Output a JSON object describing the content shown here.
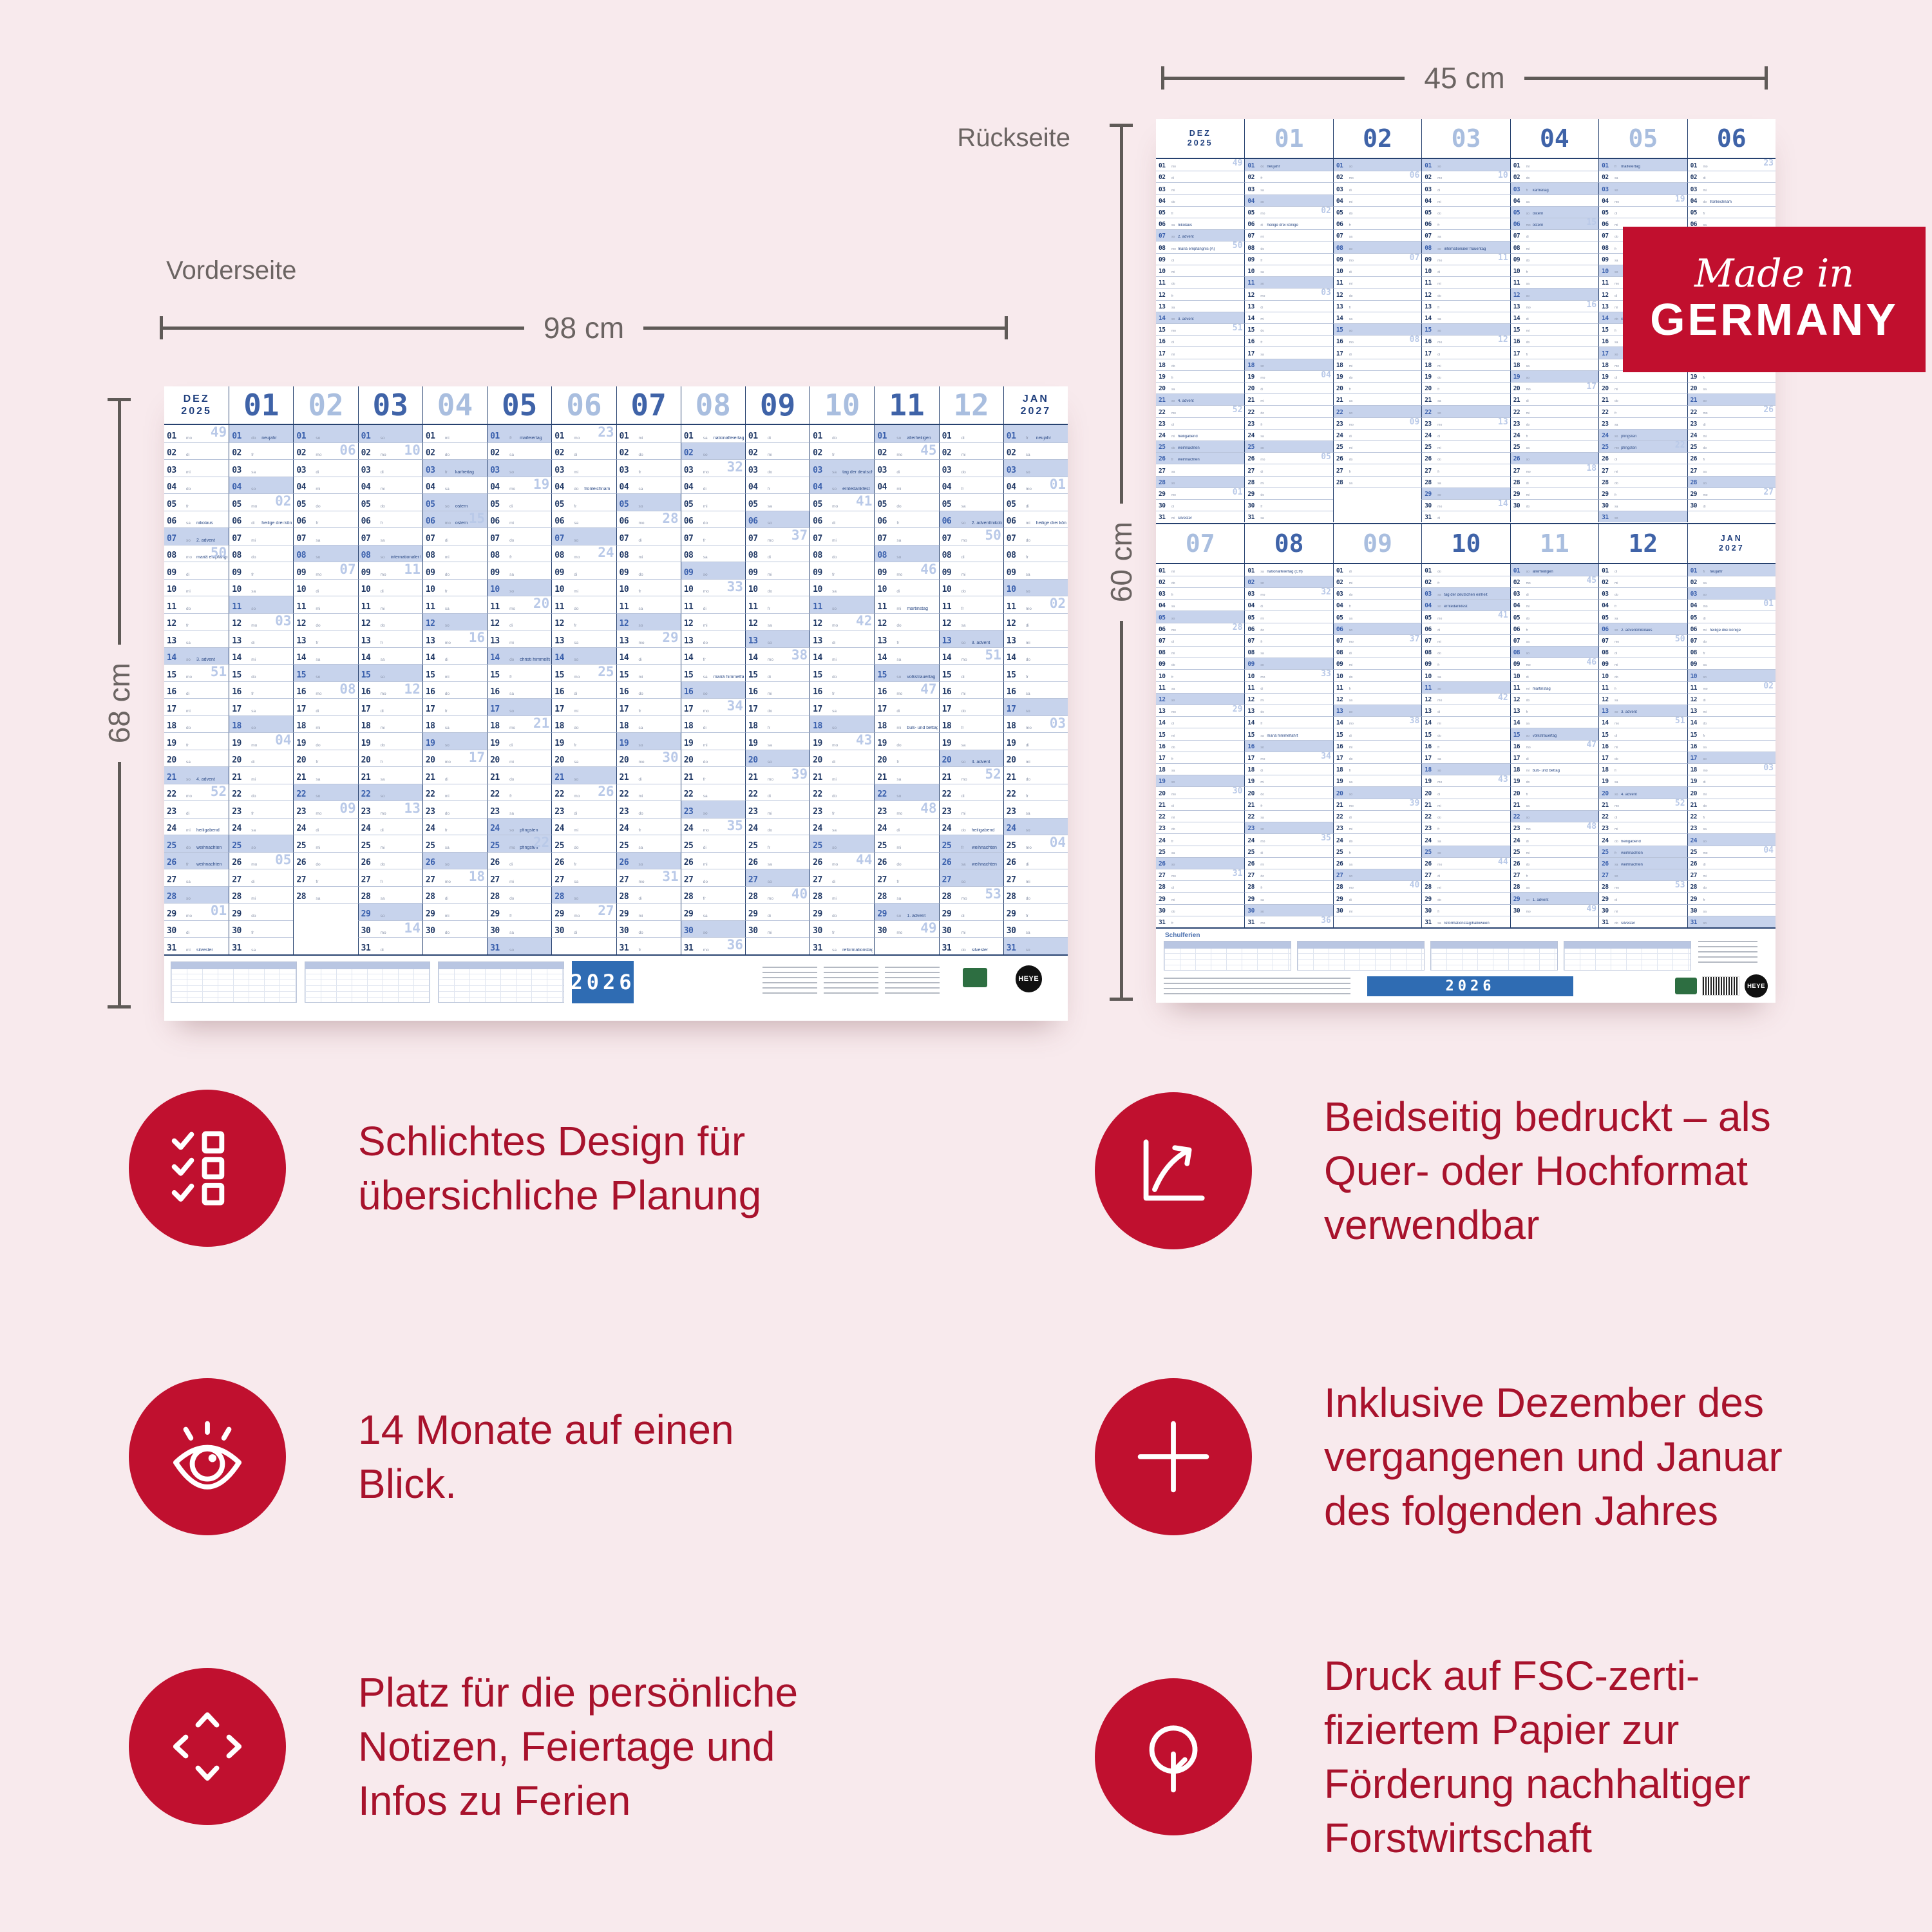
{
  "annotations": {
    "front_label": "Vorderseite",
    "back_label": "Rückseite",
    "front_width": "98 cm",
    "front_height": "68 cm",
    "back_width": "45 cm",
    "back_height": "60 cm"
  },
  "badge": {
    "line1": "Made in",
    "line2": "GERMANY",
    "bg": "#c10f2e"
  },
  "colors": {
    "background": "#f8eaed",
    "accent_red": "#c0102f",
    "text_red": "#a8122c",
    "calendar_navy": "#26416f",
    "calendar_light_blue": "#c7d3ec",
    "footer_blue": "#2f6cb3"
  },
  "features": [
    {
      "icon": "checklist-icon",
      "lines": [
        "Schlichtes Design für",
        "übersichliche Planung"
      ]
    },
    {
      "icon": "growth-arrow-icon",
      "lines": [
        "Beidseitig bedruckt – als",
        "Quer- oder Hochformat",
        "verwendbar"
      ]
    },
    {
      "icon": "eye-icon",
      "lines": [
        "14 Monate auf einen",
        "Blick."
      ]
    },
    {
      "icon": "plus-icon",
      "lines": [
        "Inklusive Dezember des",
        "vergangenen und Januar",
        "des folgenden Jahres"
      ]
    },
    {
      "icon": "expand-arrows-icon",
      "lines": [
        "Platz für die persönliche",
        "Notizen, Feiertage und",
        "Infos zu Ferien"
      ]
    },
    {
      "icon": "tree-icon",
      "lines": [
        "Druck auf FSC-zerti-",
        "fiziertem Papier zur",
        "Förderung nachhaltiger",
        "Forstwirtschaft"
      ]
    }
  ],
  "calendar": {
    "year_label": "2026",
    "brand": "HEYE",
    "schulferien_label": "Schulferien",
    "weekdays": [
      "mo",
      "di",
      "mi",
      "do",
      "fr",
      "sa",
      "so"
    ],
    "months": [
      {
        "label": "DEZ",
        "sub": "2025",
        "year": 2025,
        "month": 12
      },
      {
        "label": "01",
        "year": 2026,
        "month": 1
      },
      {
        "label": "02",
        "year": 2026,
        "month": 2
      },
      {
        "label": "03",
        "year": 2026,
        "month": 3
      },
      {
        "label": "04",
        "year": 2026,
        "month": 4
      },
      {
        "label": "05",
        "year": 2026,
        "month": 5
      },
      {
        "label": "06",
        "year": 2026,
        "month": 6
      },
      {
        "label": "07",
        "year": 2026,
        "month": 7
      },
      {
        "label": "08",
        "year": 2026,
        "month": 8
      },
      {
        "label": "09",
        "year": 2026,
        "month": 9
      },
      {
        "label": "10",
        "year": 2026,
        "month": 10
      },
      {
        "label": "11",
        "year": 2026,
        "month": 11
      },
      {
        "label": "12",
        "year": 2026,
        "month": 12
      },
      {
        "label": "JAN",
        "sub": "2027",
        "year": 2027,
        "month": 1
      }
    ],
    "holidays": {
      "2025-12-06": "nikolaus",
      "2025-12-07": "2. advent",
      "2025-12-08": "mariä empfängnis (A)",
      "2025-12-14": "3. advent",
      "2025-12-21": "4. advent",
      "2025-12-24": "heiligabend",
      "2025-12-25": "weihnachten",
      "2025-12-26": "weihnachten",
      "2025-12-31": "silvester",
      "2026-01-01": "neujahr",
      "2026-01-06": "heilige drei könige",
      "2026-03-08": "internationaler frauentag",
      "2026-04-03": "karfreitag",
      "2026-04-05": "ostern",
      "2026-04-06": "ostern",
      "2026-05-01": "maifeiertag",
      "2026-05-14": "christi himmelfahrt",
      "2026-05-24": "pfingsten",
      "2026-05-25": "pfingsten",
      "2026-06-04": "fronleichnam",
      "2026-08-01": "nationalfeiertag (CH)",
      "2026-08-15": "mariä himmelfahrt",
      "2026-10-03": "tag der deutschen einheit",
      "2026-10-04": "erntedankfest",
      "2026-10-31": "reformationstag/halloween",
      "2026-11-01": "allerheiligen",
      "2026-11-11": "martinstag",
      "2026-11-15": "volkstrauertag",
      "2026-11-18": "buß- und bettag",
      "2026-11-29": "1. advent",
      "2026-12-06": "2. advent/nikolaus",
      "2026-12-13": "3. advent",
      "2026-12-20": "4. advent",
      "2026-12-24": "heiligabend",
      "2026-12-25": "weihnachten",
      "2026-12-26": "weihnachten",
      "2026-12-31": "silvester",
      "2027-01-01": "neujahr",
      "2027-01-06": "heilige drei könige"
    },
    "public_holidays": [
      "2025-12-25",
      "2025-12-26",
      "2026-01-01",
      "2026-04-03",
      "2026-04-06",
      "2026-05-01",
      "2026-05-14",
      "2026-05-25",
      "2026-10-03",
      "2026-12-25",
      "2026-12-26",
      "2027-01-01"
    ]
  }
}
